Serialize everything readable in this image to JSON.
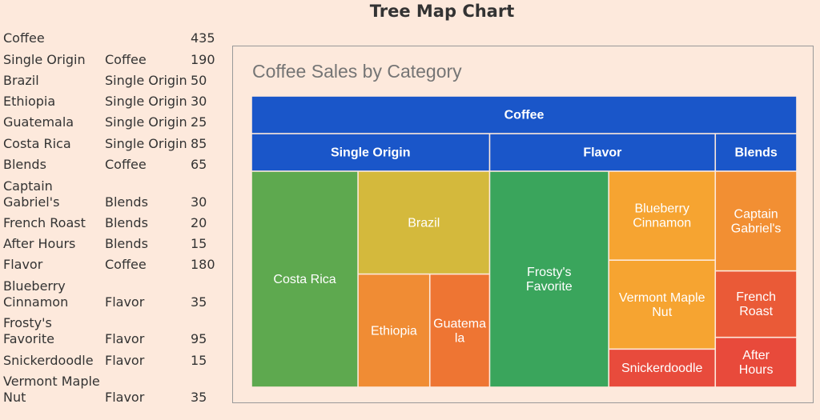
{
  "page": {
    "title": "Tree Map Chart"
  },
  "table": {
    "rows": [
      {
        "name": "Coffee",
        "parent": "",
        "value": "435"
      },
      {
        "name": "Single Origin",
        "parent": "Coffee",
        "value": "190"
      },
      {
        "name": "Brazil",
        "parent": "Single Origin",
        "value": "50"
      },
      {
        "name": "Ethiopia",
        "parent": "Single Origin",
        "value": "30"
      },
      {
        "name": "Guatemala",
        "parent": "Single Origin",
        "value": "25"
      },
      {
        "name": "Costa Rica",
        "parent": "Single Origin",
        "value": "85"
      },
      {
        "name": "Blends",
        "parent": "Coffee",
        "value": "65"
      },
      {
        "name": "Captain Gabriel's",
        "parent": "Blends",
        "value": "30"
      },
      {
        "name": "French Roast",
        "parent": "Blends",
        "value": "20"
      },
      {
        "name": "After Hours",
        "parent": "Blends",
        "value": "15"
      },
      {
        "name": "Flavor",
        "parent": "Coffee",
        "value": "180"
      },
      {
        "name": "Blueberry Cinnamon",
        "parent": "Flavor",
        "value": "35"
      },
      {
        "name": "Frosty's Favorite",
        "parent": "Flavor",
        "value": "95"
      },
      {
        "name": "Snickerdoodle",
        "parent": "Flavor",
        "value": "15"
      },
      {
        "name": "Vermont Maple Nut",
        "parent": "Flavor",
        "value": "35"
      }
    ]
  },
  "chart_data": {
    "type": "treemap",
    "title": "Coffee Sales by Category",
    "root": {
      "name": "Coffee",
      "value": 435,
      "color": "#1a56c9"
    },
    "groups": [
      {
        "name": "Single Origin",
        "value": 190,
        "color": "#1a56c9",
        "children": [
          {
            "name": "Costa Rica",
            "value": 85,
            "color": "#5ea94f"
          },
          {
            "name": "Brazil",
            "value": 50,
            "color": "#d4b93c"
          },
          {
            "name": "Ethiopia",
            "value": 30,
            "color": "#f08c34"
          },
          {
            "name": "Guatemala",
            "value": 25,
            "color": "#ee7533"
          }
        ]
      },
      {
        "name": "Flavor",
        "value": 180,
        "color": "#1a56c9",
        "children": [
          {
            "name": "Frosty's Favorite",
            "value": 95,
            "color": "#3aa55c"
          },
          {
            "name": "Blueberry Cinnamon",
            "value": 35,
            "color": "#f6a431"
          },
          {
            "name": "Vermont Maple Nut",
            "value": 35,
            "color": "#f6a431"
          },
          {
            "name": "Snickerdoodle",
            "value": 15,
            "color": "#e84b3c"
          }
        ]
      },
      {
        "name": "Blends",
        "value": 65,
        "color": "#1a56c9",
        "children": [
          {
            "name": "Captain Gabriel's",
            "value": 30,
            "color": "#f28f33"
          },
          {
            "name": "French Roast",
            "value": 20,
            "color": "#ea5a37"
          },
          {
            "name": "After Hours",
            "value": 15,
            "color": "#e84a3b"
          }
        ]
      }
    ]
  }
}
